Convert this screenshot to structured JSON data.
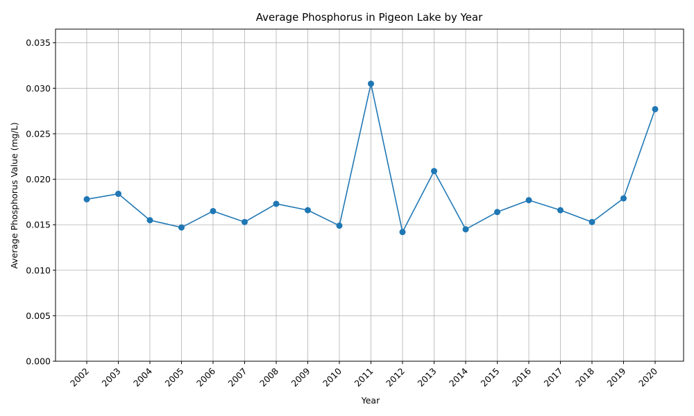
{
  "chart_data": {
    "type": "line",
    "title": "Average Phosphorus in Pigeon Lake by Year",
    "xlabel": "Year",
    "ylabel": "Average Phosphorus Value (mg/L)",
    "categories": [
      "2002",
      "2003",
      "2004",
      "2005",
      "2006",
      "2007",
      "2008",
      "2009",
      "2010",
      "2011",
      "2012",
      "2013",
      "2014",
      "2015",
      "2016",
      "2017",
      "2018",
      "2019",
      "2020"
    ],
    "series": [
      {
        "values": [
          0.0178,
          0.0184,
          0.0155,
          0.0147,
          0.0165,
          0.0153,
          0.0173,
          0.0166,
          0.0149,
          0.0305,
          0.0142,
          0.0209,
          0.0145,
          0.0164,
          0.0177,
          0.0166,
          0.0153,
          0.0179,
          0.0277
        ],
        "color": "#1f77b4",
        "marker": "circle"
      }
    ],
    "ylim": [
      0,
      0.0365
    ],
    "yticks": [
      "0.000",
      "0.005",
      "0.010",
      "0.015",
      "0.020",
      "0.025",
      "0.030",
      "0.035"
    ],
    "grid": true,
    "legend": "none"
  }
}
